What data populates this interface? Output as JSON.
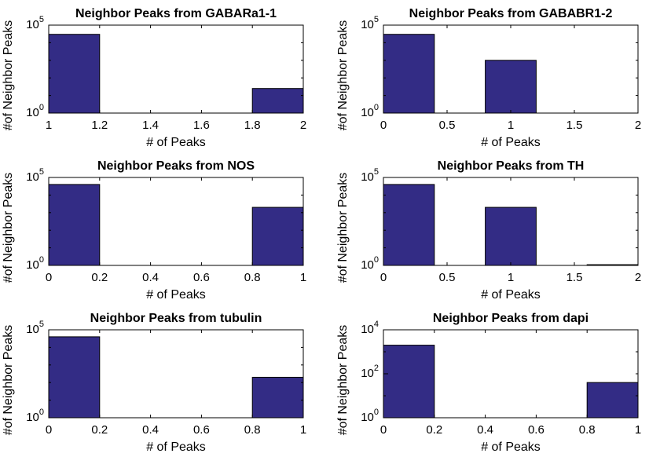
{
  "figure": {
    "ylabel": "#of Neighbor Peaks",
    "xlabel": "# of Peaks",
    "bar_color": "#332c85",
    "edge_color": "#000000"
  },
  "chart_data": [
    {
      "type": "bar",
      "title": "Neighbor Peaks from GABARa1-1",
      "xlabel": "# of Peaks",
      "ylabel": "#of Neighbor Peaks",
      "yscale": "log",
      "ylim": [
        1,
        100000
      ],
      "xlim": [
        1,
        2
      ],
      "xticks": [
        "1",
        "1.2",
        "1.4",
        "1.6",
        "1.8",
        "2"
      ],
      "xtick_values": [
        1,
        1.2,
        1.4,
        1.6,
        1.8,
        2
      ],
      "yticks": [
        "10^0",
        "10^5"
      ],
      "ytick_values": [
        1,
        100000
      ],
      "bars": [
        {
          "x0": 1.0,
          "x1": 1.2,
          "value": 30000
        },
        {
          "x0": 1.8,
          "x1": 2.0,
          "value": 25
        }
      ]
    },
    {
      "type": "bar",
      "title": "Neighbor Peaks from GABABR1-2",
      "xlabel": "# of Peaks",
      "ylabel": "#of Neighbor Peaks",
      "yscale": "log",
      "ylim": [
        1,
        100000
      ],
      "xlim": [
        0,
        2
      ],
      "xticks": [
        "0",
        "0.5",
        "1",
        "1.5",
        "2"
      ],
      "xtick_values": [
        0,
        0.5,
        1,
        1.5,
        2
      ],
      "yticks": [
        "10^0",
        "10^5"
      ],
      "ytick_values": [
        1,
        100000
      ],
      "bars": [
        {
          "x0": 0.0,
          "x1": 0.4,
          "value": 30000
        },
        {
          "x0": 0.8,
          "x1": 1.2,
          "value": 1000
        }
      ]
    },
    {
      "type": "bar",
      "title": "Neighbor Peaks from NOS",
      "xlabel": "# of Peaks",
      "ylabel": "#of Neighbor Peaks",
      "yscale": "log",
      "ylim": [
        1,
        100000
      ],
      "xlim": [
        0,
        1
      ],
      "xticks": [
        "0",
        "0.2",
        "0.4",
        "0.6",
        "0.8",
        "1"
      ],
      "xtick_values": [
        0,
        0.2,
        0.4,
        0.6,
        0.8,
        1
      ],
      "yticks": [
        "10^0",
        "10^5"
      ],
      "ytick_values": [
        1,
        100000
      ],
      "bars": [
        {
          "x0": 0.0,
          "x1": 0.2,
          "value": 40000
        },
        {
          "x0": 0.8,
          "x1": 1.0,
          "value": 2000
        }
      ]
    },
    {
      "type": "bar",
      "title": "Neighbor Peaks from TH",
      "xlabel": "# of Peaks",
      "ylabel": "#of Neighbor Peaks",
      "yscale": "log",
      "ylim": [
        1,
        100000
      ],
      "xlim": [
        0,
        2
      ],
      "xticks": [
        "0",
        "0.5",
        "1",
        "1.5",
        "2"
      ],
      "xtick_values": [
        0,
        0.5,
        1,
        1.5,
        2
      ],
      "yticks": [
        "10^0",
        "10^5"
      ],
      "ytick_values": [
        1,
        100000
      ],
      "bars": [
        {
          "x0": 0.0,
          "x1": 0.4,
          "value": 40000
        },
        {
          "x0": 0.8,
          "x1": 1.2,
          "value": 2000
        },
        {
          "x0": 1.6,
          "x1": 2.0,
          "value": 1.1
        }
      ]
    },
    {
      "type": "bar",
      "title": "Neighbor Peaks from tubulin",
      "xlabel": "# of Peaks",
      "ylabel": "#of Neighbor Peaks",
      "yscale": "log",
      "ylim": [
        1,
        100000
      ],
      "xlim": [
        0,
        1
      ],
      "xticks": [
        "0",
        "0.2",
        "0.4",
        "0.6",
        "0.8",
        "1"
      ],
      "xtick_values": [
        0,
        0.2,
        0.4,
        0.6,
        0.8,
        1
      ],
      "yticks": [
        "10^0",
        "10^5"
      ],
      "ytick_values": [
        1,
        100000
      ],
      "bars": [
        {
          "x0": 0.0,
          "x1": 0.2,
          "value": 40000
        },
        {
          "x0": 0.8,
          "x1": 1.0,
          "value": 200
        }
      ]
    },
    {
      "type": "bar",
      "title": "Neighbor Peaks from dapi",
      "xlabel": "# of Peaks",
      "ylabel": "#of Neighbor Peaks",
      "yscale": "log",
      "ylim": [
        1,
        10000
      ],
      "xlim": [
        0,
        1
      ],
      "xticks": [
        "0",
        "0.2",
        "0.4",
        "0.6",
        "0.8",
        "1"
      ],
      "xtick_values": [
        0,
        0.2,
        0.4,
        0.6,
        0.8,
        1
      ],
      "yticks": [
        "10^0",
        "10^2",
        "10^4"
      ],
      "ytick_values": [
        1,
        100,
        10000
      ],
      "bars": [
        {
          "x0": 0.0,
          "x1": 0.2,
          "value": 2000
        },
        {
          "x0": 0.8,
          "x1": 1.0,
          "value": 40
        }
      ]
    }
  ]
}
